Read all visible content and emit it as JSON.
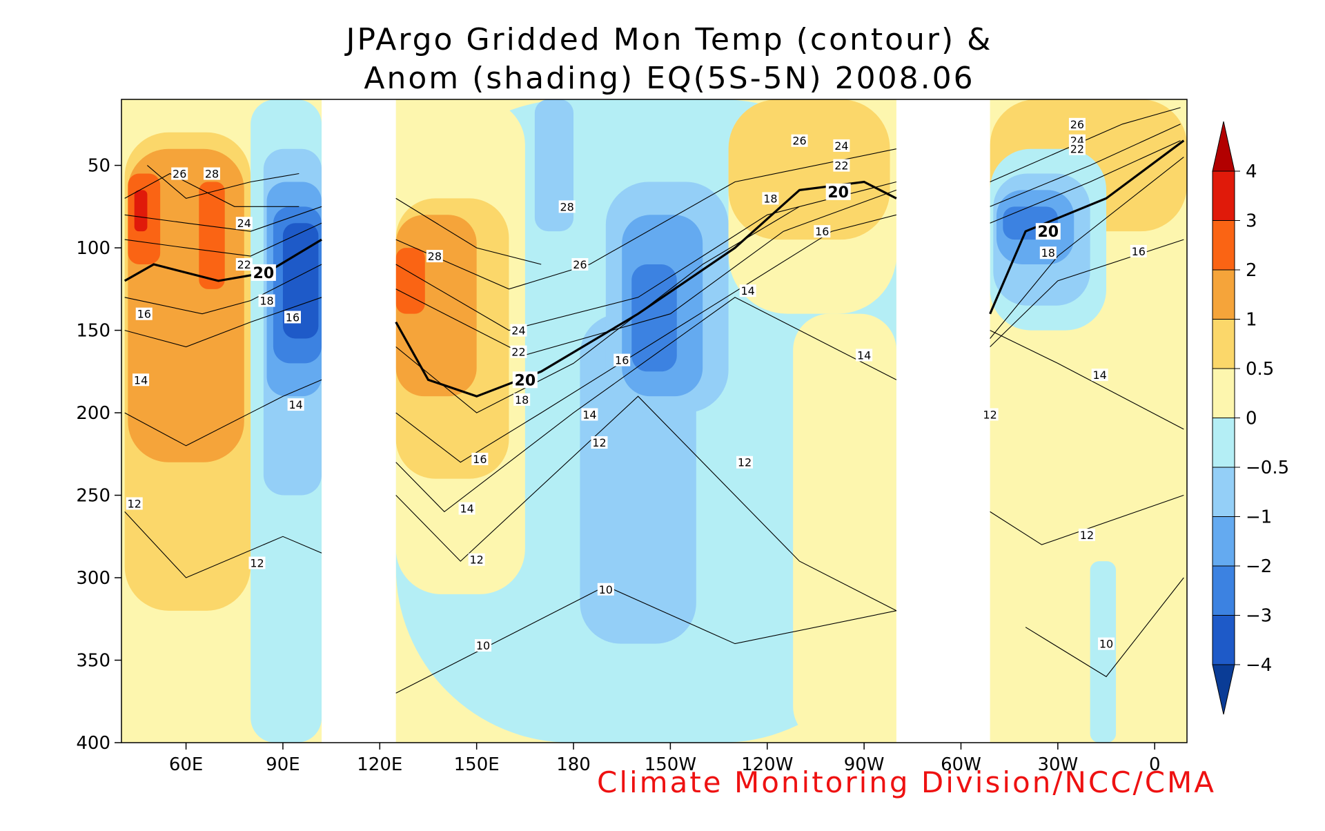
{
  "chart_data": {
    "type": "contour",
    "title": "JPArgo Gridded Mon Temp (contour) &",
    "subtitle": "Anom (shading) EQ(5S-5N) 2008.06",
    "xlabel": "",
    "ylabel": "",
    "xlim": [
      40,
      370
    ],
    "ylim": [
      400,
      10
    ],
    "x_ticks": [
      {
        "value": 60,
        "label": "60E"
      },
      {
        "value": 90,
        "label": "90E"
      },
      {
        "value": 120,
        "label": "120E"
      },
      {
        "value": 150,
        "label": "150E"
      },
      {
        "value": 180,
        "label": "180"
      },
      {
        "value": 210,
        "label": "150W"
      },
      {
        "value": 240,
        "label": "120W"
      },
      {
        "value": 270,
        "label": "90W"
      },
      {
        "value": 300,
        "label": "60W"
      },
      {
        "value": 330,
        "label": "30W"
      },
      {
        "value": 360,
        "label": "0"
      }
    ],
    "y_ticks": [
      {
        "value": 50,
        "label": "50"
      },
      {
        "value": 100,
        "label": "100"
      },
      {
        "value": 150,
        "label": "150"
      },
      {
        "value": 200,
        "label": "200"
      },
      {
        "value": 250,
        "label": "250"
      },
      {
        "value": 300,
        "label": "300"
      },
      {
        "value": 350,
        "label": "350"
      },
      {
        "value": 400,
        "label": "400"
      }
    ],
    "land_gaps": [
      [
        102,
        125
      ],
      [
        280,
        309
      ]
    ],
    "colorbar": {
      "labels": [
        "4",
        "3",
        "2",
        "1",
        "0.5",
        "0",
        "−0.5",
        "−1",
        "−2",
        "−3",
        "−4"
      ],
      "colors": [
        "#b20000",
        "#e01a0a",
        "#fa6414",
        "#f5a43a",
        "#fbd76a",
        "#fdf6ae",
        "#b4eef5",
        "#94cff7",
        "#64aaf0",
        "#3c82e1",
        "#1e5ac8",
        "#0a3c96"
      ]
    },
    "anomaly_blobs": [
      {
        "lon": 41,
        "d0": 10,
        "lon1": 102,
        "d1": 400,
        "cls": 5
      },
      {
        "lon": 41,
        "d0": 30,
        "lon1": 80,
        "d1": 320,
        "cls": 4
      },
      {
        "lon": 42,
        "d0": 40,
        "lon1": 78,
        "d1": 230,
        "cls": 3
      },
      {
        "lon": 42,
        "d0": 55,
        "lon1": 52,
        "d1": 110,
        "cls": 2
      },
      {
        "lon": 64,
        "d0": 60,
        "lon1": 72,
        "d1": 125,
        "cls": 2
      },
      {
        "lon": 44,
        "d0": 65,
        "lon1": 48,
        "d1": 90,
        "cls": 1
      },
      {
        "lon": 80,
        "d0": 10,
        "lon1": 102,
        "d1": 400,
        "cls": 6
      },
      {
        "lon": 84,
        "d0": 40,
        "lon1": 102,
        "d1": 250,
        "cls": 7
      },
      {
        "lon": 85,
        "d0": 60,
        "lon1": 102,
        "d1": 190,
        "cls": 8
      },
      {
        "lon": 87,
        "d0": 75,
        "lon1": 102,
        "d1": 170,
        "cls": 9
      },
      {
        "lon": 90,
        "d0": 85,
        "lon1": 101,
        "d1": 155,
        "cls": 10
      },
      {
        "lon": 125,
        "d0": 10,
        "lon1": 280,
        "d1": 400,
        "cls": 6
      },
      {
        "lon": 125,
        "d0": 10,
        "lon1": 165,
        "d1": 310,
        "cls": 5
      },
      {
        "lon": 125,
        "d0": 70,
        "lon1": 160,
        "d1": 240,
        "cls": 4
      },
      {
        "lon": 125,
        "d0": 80,
        "lon1": 150,
        "d1": 190,
        "cls": 3
      },
      {
        "lon": 125,
        "d0": 100,
        "lon1": 134,
        "d1": 140,
        "cls": 2
      },
      {
        "lon": 168,
        "d0": 10,
        "lon1": 180,
        "d1": 90,
        "cls": 7
      },
      {
        "lon": 182,
        "d0": 140,
        "lon1": 218,
        "d1": 340,
        "cls": 7
      },
      {
        "lon": 190,
        "d0": 60,
        "lon1": 228,
        "d1": 200,
        "cls": 7
      },
      {
        "lon": 195,
        "d0": 80,
        "lon1": 220,
        "d1": 190,
        "cls": 8
      },
      {
        "lon": 198,
        "d0": 110,
        "lon1": 212,
        "d1": 175,
        "cls": 9
      },
      {
        "lon": 228,
        "d0": 10,
        "lon1": 280,
        "d1": 140,
        "cls": 5
      },
      {
        "lon": 228,
        "d0": 10,
        "lon1": 278,
        "d1": 95,
        "cls": 4
      },
      {
        "lon": 248,
        "d0": 140,
        "lon1": 280,
        "d1": 400,
        "cls": 5
      },
      {
        "lon": 309,
        "d0": 10,
        "lon1": 370,
        "d1": 400,
        "cls": 5
      },
      {
        "lon": 309,
        "d0": 10,
        "lon1": 370,
        "d1": 90,
        "cls": 4
      },
      {
        "lon": 309,
        "d0": 40,
        "lon1": 345,
        "d1": 150,
        "cls": 6
      },
      {
        "lon": 310,
        "d0": 55,
        "lon1": 340,
        "d1": 135,
        "cls": 7
      },
      {
        "lon": 311,
        "d0": 65,
        "lon1": 335,
        "d1": 110,
        "cls": 8
      },
      {
        "lon": 313,
        "d0": 75,
        "lon1": 330,
        "d1": 95,
        "cls": 9
      },
      {
        "lon": 340,
        "d0": 290,
        "lon1": 348,
        "d1": 400,
        "cls": 6
      }
    ],
    "contours": [
      {
        "level": 28,
        "segments": [
          [
            [
              48,
              50
            ],
            [
              60,
              70
            ],
            [
              80,
              60
            ],
            [
              95,
              55
            ]
          ],
          [
            [
              125,
              70
            ],
            [
              150,
              100
            ],
            [
              170,
              110
            ]
          ]
        ],
        "labels": [
          [
            68,
            55
          ],
          [
            137,
            105
          ],
          [
            178,
            75
          ]
        ]
      },
      {
        "level": 26,
        "segments": [
          [
            [
              41,
              70
            ],
            [
              55,
              55
            ],
            [
              75,
              75
            ],
            [
              95,
              75
            ]
          ],
          [
            [
              125,
              95
            ],
            [
              160,
              125
            ],
            [
              185,
              110
            ],
            [
              230,
              60
            ],
            [
              280,
              40
            ]
          ],
          [
            [
              309,
              60
            ],
            [
              350,
              25
            ],
            [
              368,
              15
            ]
          ]
        ],
        "labels": [
          [
            58,
            55
          ],
          [
            182,
            110
          ],
          [
            250,
            35
          ],
          [
            336,
            25
          ]
        ]
      },
      {
        "level": 24,
        "segments": [
          [
            [
              41,
              80
            ],
            [
              60,
              85
            ],
            [
              80,
              90
            ],
            [
              102,
              75
            ]
          ],
          [
            [
              125,
              110
            ],
            [
              160,
              150
            ],
            [
              200,
              130
            ],
            [
              240,
              80
            ],
            [
              280,
              60
            ]
          ],
          [
            [
              309,
              75
            ],
            [
              340,
              50
            ],
            [
              368,
              25
            ]
          ]
        ],
        "labels": [
          [
            78,
            85
          ],
          [
            163,
            150
          ],
          [
            263,
            38
          ],
          [
            336,
            35
          ]
        ]
      },
      {
        "level": 22,
        "segments": [
          [
            [
              41,
              95
            ],
            [
              60,
              100
            ],
            [
              80,
              105
            ],
            [
              102,
              85
            ]
          ],
          [
            [
              125,
              125
            ],
            [
              165,
              165
            ],
            [
              210,
              140
            ],
            [
              245,
              90
            ],
            [
              280,
              65
            ]
          ],
          [
            [
              309,
              85
            ],
            [
              340,
              60
            ],
            [
              368,
              35
            ]
          ]
        ],
        "labels": [
          [
            78,
            110
          ],
          [
            163,
            163
          ],
          [
            263,
            50
          ],
          [
            336,
            40
          ]
        ]
      },
      {
        "level": 20,
        "bold": true,
        "segments": [
          [
            [
              41,
              120
            ],
            [
              50,
              110
            ],
            [
              70,
              120
            ],
            [
              85,
              115
            ],
            [
              102,
              95
            ]
          ],
          [
            [
              125,
              145
            ],
            [
              135,
              180
            ],
            [
              150,
              190
            ],
            [
              170,
              175
            ],
            [
              200,
              140
            ],
            [
              230,
              100
            ],
            [
              250,
              65
            ],
            [
              270,
              60
            ],
            [
              280,
              70
            ]
          ],
          [
            [
              309,
              140
            ],
            [
              320,
              90
            ],
            [
              345,
              70
            ],
            [
              369,
              35
            ]
          ]
        ],
        "labels": [
          [
            84,
            115
          ],
          [
            165,
            180
          ],
          [
            262,
            66
          ],
          [
            327,
            90
          ]
        ]
      },
      {
        "level": 18,
        "segments": [
          [
            [
              41,
              130
            ],
            [
              65,
              140
            ],
            [
              80,
              132
            ],
            [
              102,
              110
            ]
          ],
          [
            [
              125,
              160
            ],
            [
              150,
              200
            ],
            [
              180,
              170
            ],
            [
              220,
              110
            ],
            [
              250,
              75
            ]
          ],
          [
            [
              309,
              155
            ],
            [
              330,
              105
            ],
            [
              369,
              45
            ]
          ]
        ],
        "labels": [
          [
            85,
            132
          ],
          [
            164,
            192
          ],
          [
            241,
            70
          ],
          [
            327,
            103
          ]
        ]
      },
      {
        "level": 16,
        "segments": [
          [
            [
              41,
              150
            ],
            [
              60,
              160
            ],
            [
              80,
              145
            ],
            [
              102,
              130
            ]
          ],
          [
            [
              125,
              200
            ],
            [
              145,
              230
            ],
            [
              170,
              200
            ],
            [
              215,
              145
            ],
            [
              260,
              90
            ],
            [
              280,
              80
            ]
          ],
          [
            [
              309,
              160
            ],
            [
              330,
              120
            ],
            [
              369,
              95
            ]
          ]
        ],
        "labels": [
          [
            47,
            140
          ],
          [
            93,
            142
          ],
          [
            151,
            228
          ],
          [
            195,
            168
          ],
          [
            257,
            90
          ],
          [
            355,
            102
          ]
        ]
      },
      {
        "level": 14,
        "segments": [
          [
            [
              41,
              200
            ],
            [
              60,
              220
            ],
            [
              90,
              190
            ],
            [
              102,
              180
            ]
          ],
          [
            [
              125,
              230
            ],
            [
              140,
              260
            ],
            [
              180,
              200
            ],
            [
              230,
              130
            ],
            [
              270,
              170
            ],
            [
              280,
              180
            ]
          ],
          [
            [
              309,
              150
            ],
            [
              330,
              170
            ],
            [
              369,
              210
            ]
          ]
        ],
        "labels": [
          [
            46,
            180
          ],
          [
            94,
            195
          ],
          [
            147,
            258
          ],
          [
            185,
            201
          ],
          [
            234,
            126
          ],
          [
            270,
            165
          ],
          [
            343,
            177
          ]
        ]
      },
      {
        "level": 12,
        "segments": [
          [
            [
              41,
              260
            ],
            [
              60,
              300
            ],
            [
              90,
              275
            ],
            [
              102,
              285
            ]
          ],
          [
            [
              125,
              250
            ],
            [
              145,
              290
            ],
            [
              200,
              190
            ],
            [
              250,
              290
            ],
            [
              280,
              320
            ]
          ],
          [
            [
              309,
              260
            ],
            [
              325,
              280
            ],
            [
              369,
              250
            ]
          ]
        ],
        "labels": [
          [
            44,
            255
          ],
          [
            82,
            291
          ],
          [
            150,
            289
          ],
          [
            188,
            218
          ],
          [
            233,
            230
          ],
          [
            309,
            201
          ],
          [
            339,
            274
          ]
        ]
      },
      {
        "level": 10,
        "segments": [
          [
            [
              125,
              370
            ],
            [
              165,
              330
            ],
            [
              190,
              305
            ],
            [
              230,
              340
            ],
            [
              280,
              320
            ]
          ],
          [
            [
              320,
              330
            ],
            [
              345,
              360
            ],
            [
              369,
              300
            ]
          ]
        ],
        "labels": [
          [
            152,
            341
          ],
          [
            190,
            307
          ],
          [
            345,
            340
          ]
        ]
      }
    ]
  },
  "footer": {
    "credit": "Climate Monitoring Division/NCC/CMA"
  }
}
